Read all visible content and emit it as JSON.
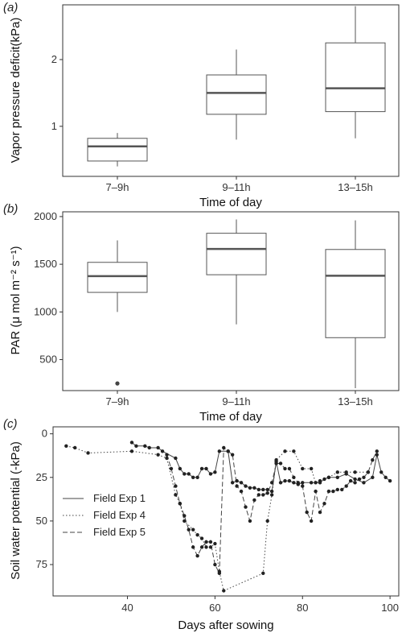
{
  "chart_data": [
    {
      "type": "box",
      "panel_label": "(a)",
      "categories": [
        "7–9h",
        "9–11h",
        "13–15h"
      ],
      "boxes": [
        {
          "min": 0.4,
          "q1": 0.48,
          "median": 0.7,
          "q3": 0.82,
          "max": 0.9,
          "outliers": []
        },
        {
          "min": 0.8,
          "q1": 1.18,
          "median": 1.5,
          "q3": 1.77,
          "max": 2.15,
          "outliers": []
        },
        {
          "min": 0.82,
          "q1": 1.22,
          "median": 1.57,
          "q3": 2.25,
          "max": 2.8,
          "outliers": []
        }
      ],
      "xlabel": "Time of day",
      "ylabel": "Vapor pressure deficit(kPa)",
      "ylim": [
        0.25,
        2.82
      ],
      "yticks": [
        "1",
        "2"
      ]
    },
    {
      "type": "box",
      "panel_label": "(b)",
      "categories": [
        "7–9h",
        "9–11h",
        "13–15h"
      ],
      "boxes": [
        {
          "min": 1000,
          "q1": 1205,
          "median": 1375,
          "q3": 1520,
          "max": 1750,
          "outliers": [
            250
          ]
        },
        {
          "min": 870,
          "q1": 1390,
          "median": 1660,
          "q3": 1825,
          "max": 1970,
          "outliers": []
        },
        {
          "min": 200,
          "q1": 730,
          "median": 1380,
          "q3": 1655,
          "max": 1960,
          "outliers": []
        }
      ],
      "xlabel": "Time of day",
      "ylabel": "PAR (μ mol m⁻² s⁻¹)",
      "ylim": [
        175,
        2050
      ],
      "yticks": [
        "500",
        "1000",
        "1500",
        "2000"
      ]
    },
    {
      "type": "line",
      "panel_label": "(c)",
      "series": [
        {
          "name": "Field Exp 1",
          "dash": "solid",
          "points": [
            [
              41,
              5
            ],
            [
              42,
              7
            ],
            [
              44,
              7
            ],
            [
              45,
              8
            ],
            [
              47,
              8
            ],
            [
              48,
              10
            ],
            [
              51,
              14
            ],
            [
              52,
              20
            ],
            [
              53,
              23
            ],
            [
              54,
              23
            ],
            [
              55,
              25
            ],
            [
              56,
              25
            ],
            [
              57,
              20
            ],
            [
              58,
              20
            ],
            [
              59,
              23
            ],
            [
              60,
              22
            ],
            [
              61,
              10
            ],
            [
              63,
              10
            ],
            [
              64,
              28
            ],
            [
              65,
              27
            ],
            [
              66,
              28
            ],
            [
              67,
              30
            ],
            [
              68,
              31
            ],
            [
              69,
              31
            ],
            [
              70,
              32
            ],
            [
              71,
              32
            ],
            [
              72,
              32
            ],
            [
              73,
              33
            ],
            [
              74,
              16
            ],
            [
              75,
              28
            ],
            [
              76,
              27
            ],
            [
              77,
              27
            ],
            [
              78,
              28
            ],
            [
              79,
              29
            ],
            [
              80,
              28
            ],
            [
              82,
              28
            ],
            [
              84,
              28
            ],
            [
              85,
              26
            ],
            [
              86,
              25
            ],
            [
              88,
              25
            ],
            [
              90,
              23
            ],
            [
              92,
              26
            ],
            [
              94,
              28
            ],
            [
              96,
              25
            ],
            [
              97,
              12
            ],
            [
              98,
              22
            ],
            [
              99,
              25
            ],
            [
              100,
              27
            ]
          ]
        },
        {
          "name": "Field Exp 4",
          "dash": "dotted",
          "points": [
            [
              26,
              7
            ],
            [
              28,
              8
            ],
            [
              31,
              11
            ],
            [
              41,
              10
            ],
            [
              47,
              12
            ],
            [
              49,
              14
            ],
            [
              51,
              35
            ],
            [
              52,
              40
            ],
            [
              53,
              50
            ],
            [
              55,
              55
            ],
            [
              56,
              58
            ],
            [
              57,
              60
            ],
            [
              58,
              65
            ],
            [
              59,
              65
            ],
            [
              60,
              63
            ],
            [
              61,
              79
            ],
            [
              62,
              90
            ],
            [
              71,
              80
            ],
            [
              72,
              50
            ],
            [
              73,
              35
            ],
            [
              74,
              15
            ],
            [
              76,
              10
            ],
            [
              78,
              10
            ],
            [
              80,
              20
            ],
            [
              82,
              20
            ],
            [
              83,
              28
            ],
            [
              84,
              27
            ],
            [
              86,
              25
            ],
            [
              88,
              22
            ],
            [
              90,
              22
            ],
            [
              92,
              22
            ],
            [
              95,
              22
            ]
          ]
        },
        {
          "name": "Field Exp 5",
          "dash": "dashed",
          "points": [
            [
              49,
              12
            ],
            [
              50,
              20
            ],
            [
              51,
              30
            ],
            [
              52,
              40
            ],
            [
              53,
              47
            ],
            [
              54,
              55
            ],
            [
              55,
              65
            ],
            [
              56,
              70
            ],
            [
              57,
              65
            ],
            [
              58,
              62
            ],
            [
              59,
              62
            ],
            [
              60,
              75
            ],
            [
              61,
              80
            ],
            [
              62,
              8
            ],
            [
              63,
              10
            ],
            [
              64,
              12
            ],
            [
              65,
              30
            ],
            [
              66,
              33
            ],
            [
              67,
              42
            ],
            [
              68,
              50
            ],
            [
              69,
              38
            ],
            [
              70,
              35
            ],
            [
              71,
              35
            ],
            [
              72,
              34
            ],
            [
              73,
              28
            ],
            [
              74,
              17
            ],
            [
              75,
              17
            ],
            [
              76,
              20
            ],
            [
              77,
              20
            ],
            [
              78,
              25
            ],
            [
              79,
              28
            ],
            [
              80,
              30
            ],
            [
              81,
              45
            ],
            [
              82,
              50
            ],
            [
              83,
              33
            ],
            [
              84,
              45
            ],
            [
              85,
              40
            ],
            [
              86,
              33
            ],
            [
              87,
              33
            ],
            [
              88,
              32
            ],
            [
              89,
              32
            ],
            [
              90,
              30
            ],
            [
              91,
              27
            ],
            [
              92,
              28
            ],
            [
              93,
              26
            ],
            [
              94,
              25
            ],
            [
              95,
              22
            ],
            [
              96,
              15
            ],
            [
              97,
              10
            ]
          ]
        }
      ],
      "xlabel": "Days after sowing",
      "ylabel": "Soil water potential (-kPa)",
      "xlim": [
        23,
        102
      ],
      "ylim": [
        -4,
        93
      ],
      "xticks": [
        "40",
        "60",
        "80",
        "100"
      ],
      "yticks": [
        "0",
        "25",
        "50",
        "75"
      ],
      "legend_placement": "center-left"
    }
  ]
}
